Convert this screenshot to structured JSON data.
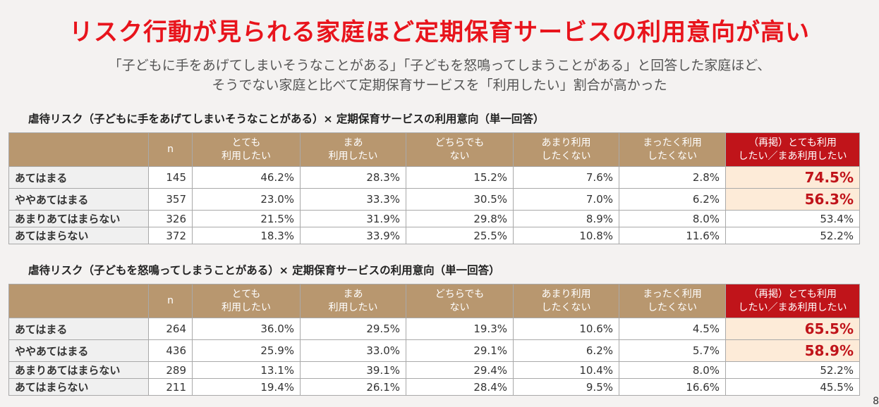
{
  "title": "リスク行動が見られる家庭ほど定期保育サービスの利用意向が高い",
  "subtitle": [
    "「子どもに手をあげてしまいそうなことがある」「子どもを怒鳴ってしまうことがある」と回答した家庭ほど、",
    "そうでない家庭と比べて定期保育サービスを「利用したい」割合が高かった"
  ],
  "columns": [
    "",
    "n",
    "とても\n利用したい",
    "まあ\n利用したい",
    "どちらでも\nない",
    "あまり利用\nしたくない",
    "まったく利用\nしたくない",
    "（再掲）とても利用\nしたい／まあ利用したい"
  ],
  "accent_color": "#c0141a",
  "tables": [
    {
      "title": "虐待リスク（子どもに手をあげてしまいそうなことがある）× 定期保育サービスの利用意向（単一回答）",
      "rows": [
        {
          "label": "あてはまる",
          "cells": [
            "145",
            "46.2%",
            "28.3%",
            "15.2%",
            "7.6%",
            "2.8%",
            "74.5%"
          ]
        },
        {
          "label": "ややあてはまる",
          "cells": [
            "357",
            "23.0%",
            "33.3%",
            "30.5%",
            "7.0%",
            "6.2%",
            "56.3%"
          ]
        },
        {
          "label": "あまりあてはまらない",
          "cells": [
            "326",
            "21.5%",
            "31.9%",
            "29.8%",
            "8.9%",
            "8.0%",
            "53.4%"
          ]
        },
        {
          "label": "あてはまらない",
          "cells": [
            "372",
            "18.3%",
            "33.9%",
            "25.5%",
            "10.8%",
            "11.6%",
            "52.2%"
          ]
        }
      ]
    },
    {
      "title": "虐待リスク（子どもを怒鳴ってしまうことがある）× 定期保育サービスの利用意向（単一回答）",
      "rows": [
        {
          "label": "あてはまる",
          "cells": [
            "264",
            "36.0%",
            "29.5%",
            "19.3%",
            "10.6%",
            "4.5%",
            "65.5%"
          ]
        },
        {
          "label": "ややあてはまる",
          "cells": [
            "436",
            "25.9%",
            "33.0%",
            "29.1%",
            "6.2%",
            "5.7%",
            "58.9%"
          ]
        },
        {
          "label": "あまりあてはまらない",
          "cells": [
            "289",
            "13.1%",
            "39.1%",
            "29.4%",
            "10.4%",
            "8.0%",
            "52.2%"
          ]
        },
        {
          "label": "あてはまらない",
          "cells": [
            "211",
            "19.4%",
            "26.1%",
            "28.4%",
            "9.5%",
            "16.6%",
            "45.5%"
          ]
        }
      ]
    }
  ],
  "page_number": "8"
}
